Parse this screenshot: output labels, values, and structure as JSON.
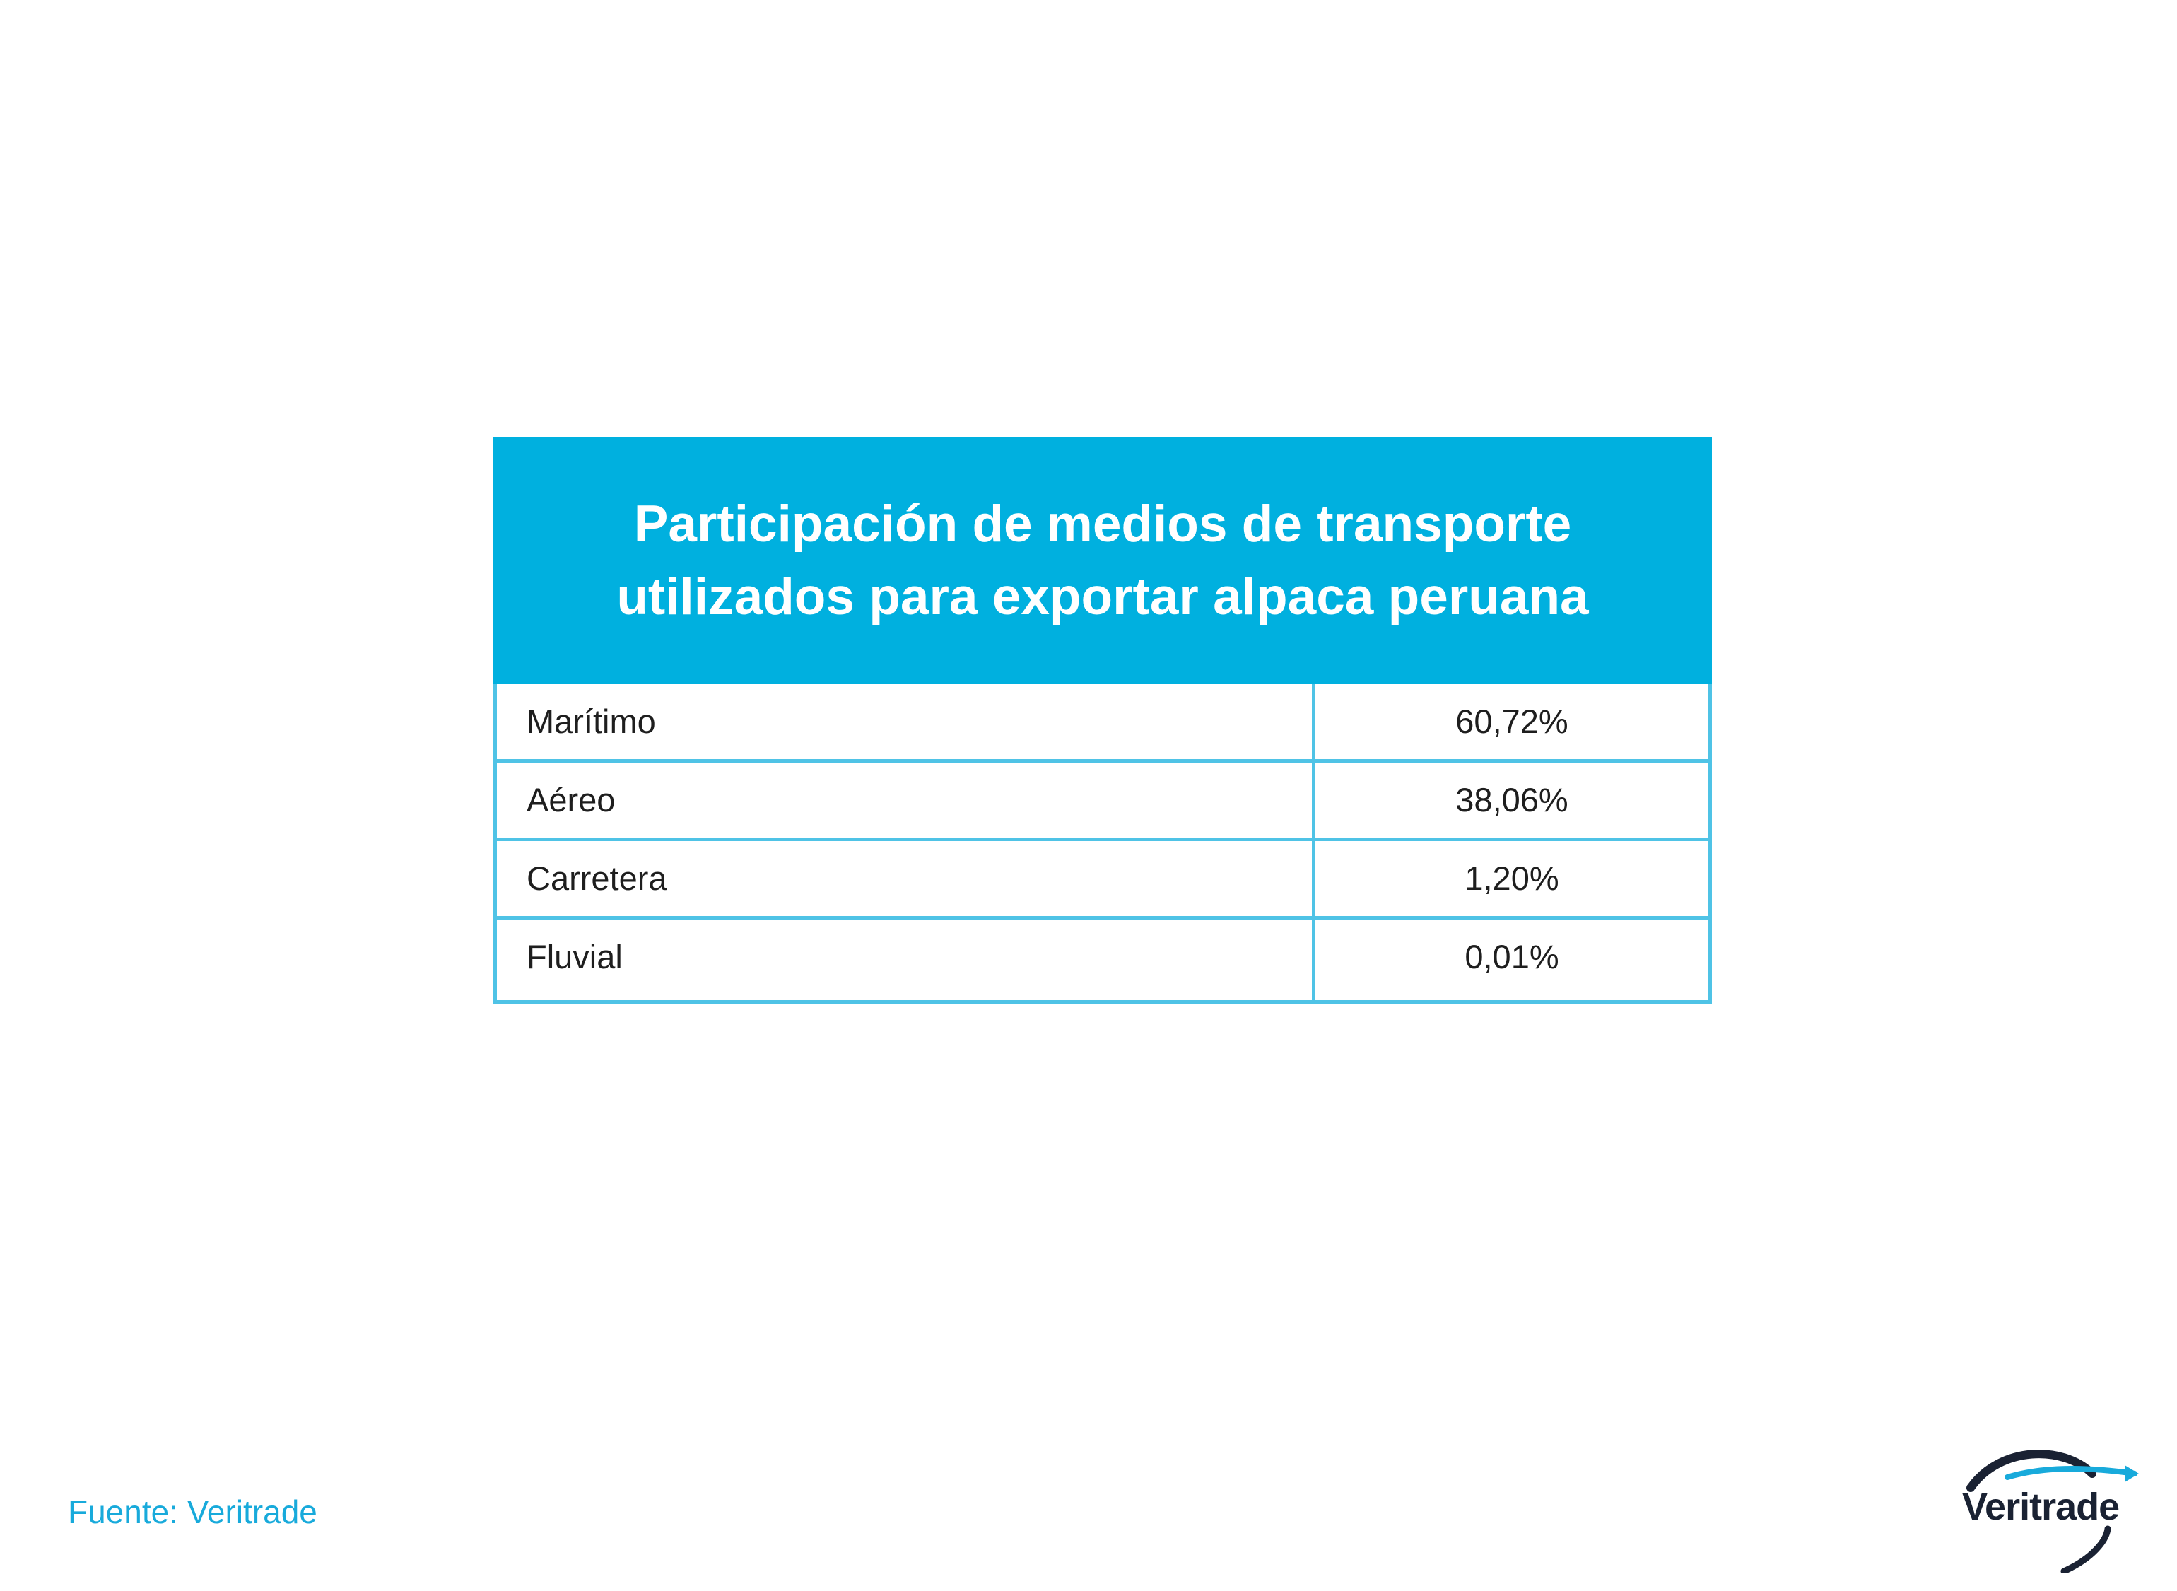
{
  "chart_data": {
    "type": "table",
    "title": "Participación de medios de transporte\nutilizados para exportar alpaca peruana",
    "rows": [
      {
        "label": "Marítimo",
        "value": "60,72%"
      },
      {
        "label": "Aéreo",
        "value": "38,06%"
      },
      {
        "label": "Carretera",
        "value": "1,20%"
      },
      {
        "label": "Fluvial",
        "value": "0,01%"
      }
    ],
    "values": [
      60.72,
      38.06,
      1.2,
      0.01
    ]
  },
  "source": "Fuente: Veritrade",
  "logo": {
    "text": "Veritrade",
    "icon": "veritrade-swoosh-icon"
  },
  "colors": {
    "header_bg": "#00b0df",
    "grid_line": "#4fc3e6",
    "source_text": "#18aadb",
    "logo_dark": "#1a2233",
    "logo_accent": "#18aadb"
  }
}
